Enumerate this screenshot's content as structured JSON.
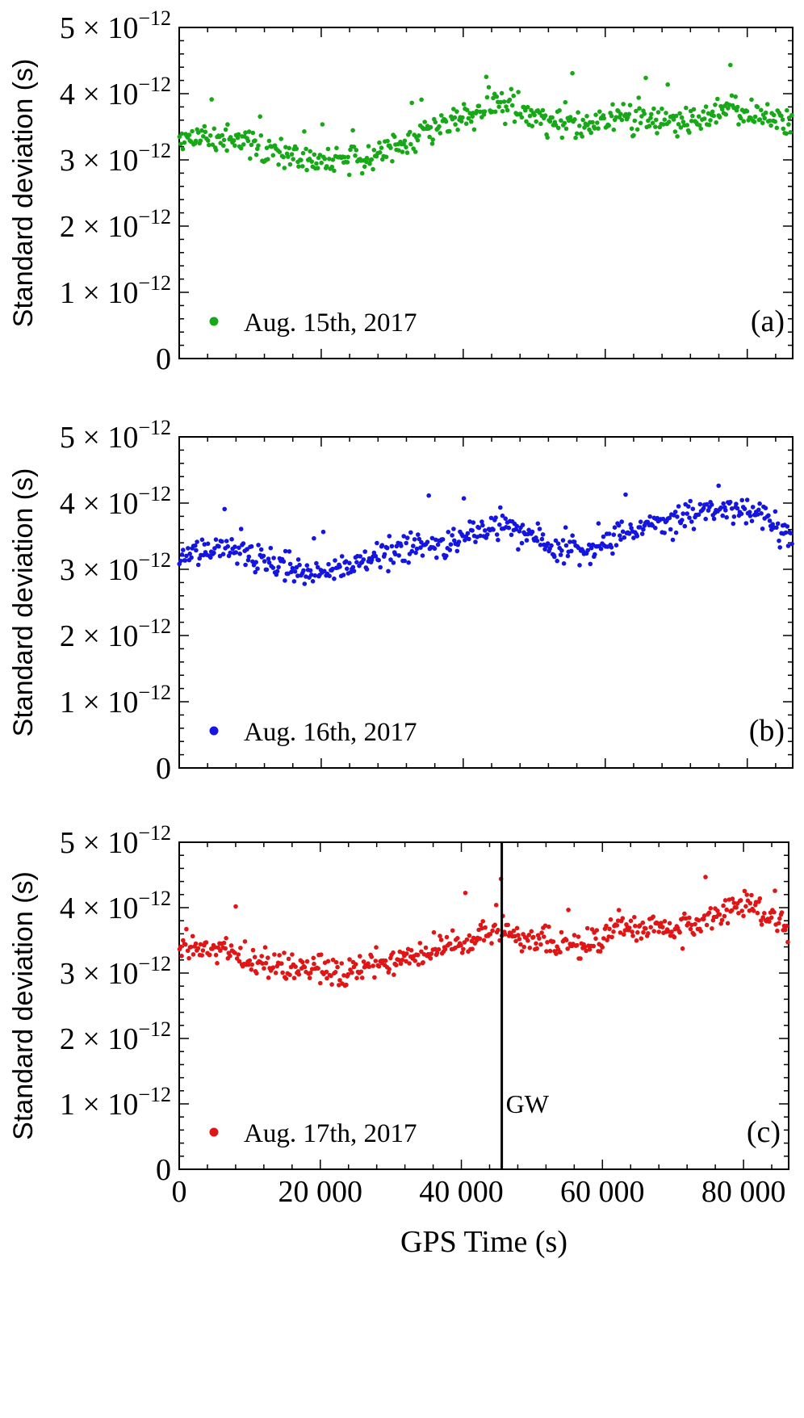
{
  "chart_data": [
    {
      "type": "scatter",
      "panel": "(a)",
      "legend": "Aug. 15th, 2017",
      "color": "#17a817",
      "ylabel": "Standard deviation (s)",
      "ylim": [
        0,
        5
      ],
      "xlim": [
        0,
        86400
      ],
      "yticks": [
        {
          "value": 0,
          "label": "0"
        },
        {
          "value": 1,
          "label": "1 × 10",
          "exp": "−12"
        },
        {
          "value": 2,
          "label": "2 × 10",
          "exp": "−12"
        },
        {
          "value": 3,
          "label": "3 × 10",
          "exp": "−12"
        },
        {
          "value": 4,
          "label": "4 × 10",
          "exp": "−12"
        },
        {
          "value": 5,
          "label": "5 × 10",
          "exp": "−12"
        }
      ],
      "trend": [
        [
          0,
          3.3
        ],
        [
          8000,
          3.35
        ],
        [
          14000,
          3.15
        ],
        [
          20000,
          3.0
        ],
        [
          25000,
          3.0
        ],
        [
          30000,
          3.15
        ],
        [
          35000,
          3.45
        ],
        [
          40000,
          3.65
        ],
        [
          45000,
          3.85
        ],
        [
          50000,
          3.65
        ],
        [
          56000,
          3.5
        ],
        [
          62000,
          3.65
        ],
        [
          70000,
          3.55
        ],
        [
          78000,
          3.75
        ],
        [
          86400,
          3.55
        ]
      ],
      "spread": 0.18,
      "n_points": 520,
      "seed": 11
    },
    {
      "type": "scatter",
      "panel": "(b)",
      "legend": "Aug. 16th, 2017",
      "color": "#1515e0",
      "ylabel": "Standard deviation (s)",
      "ylim": [
        0,
        5
      ],
      "xlim": [
        0,
        86400
      ],
      "yticks": [
        {
          "value": 0,
          "label": "0"
        },
        {
          "value": 1,
          "label": "1 × 10",
          "exp": "−12"
        },
        {
          "value": 2,
          "label": "2 × 10",
          "exp": "−12"
        },
        {
          "value": 3,
          "label": "3 × 10",
          "exp": "−12"
        },
        {
          "value": 4,
          "label": "4 × 10",
          "exp": "−12"
        },
        {
          "value": 5,
          "label": "5 × 10",
          "exp": "−12"
        }
      ],
      "trend": [
        [
          0,
          3.25
        ],
        [
          8000,
          3.3
        ],
        [
          14000,
          3.05
        ],
        [
          20000,
          2.95
        ],
        [
          25000,
          3.05
        ],
        [
          30000,
          3.3
        ],
        [
          36000,
          3.35
        ],
        [
          42000,
          3.55
        ],
        [
          46000,
          3.7
        ],
        [
          52000,
          3.35
        ],
        [
          58000,
          3.3
        ],
        [
          64000,
          3.6
        ],
        [
          70000,
          3.75
        ],
        [
          76000,
          3.9
        ],
        [
          80000,
          3.9
        ],
        [
          86400,
          3.5
        ]
      ],
      "spread": 0.18,
      "n_points": 520,
      "seed": 29
    },
    {
      "type": "scatter",
      "panel": "(c)",
      "legend": "Aug. 17th, 2017",
      "color": "#e01515",
      "ylabel": "Standard deviation (s)",
      "xlabel": "GPS Time (s)",
      "ylim": [
        0,
        5
      ],
      "xlim": [
        0,
        86400
      ],
      "xticks": [
        {
          "value": 0,
          "label": "0"
        },
        {
          "value": 20000,
          "label": "20 000"
        },
        {
          "value": 40000,
          "label": "40 000"
        },
        {
          "value": 60000,
          "label": "60 000"
        },
        {
          "value": 80000,
          "label": "80 000"
        }
      ],
      "yticks": [
        {
          "value": 0,
          "label": "0"
        },
        {
          "value": 1,
          "label": "1 × 10",
          "exp": "−12"
        },
        {
          "value": 2,
          "label": "2 × 10",
          "exp": "−12"
        },
        {
          "value": 3,
          "label": "3 × 10",
          "exp": "−12"
        },
        {
          "value": 4,
          "label": "4 × 10",
          "exp": "−12"
        },
        {
          "value": 5,
          "label": "5 × 10",
          "exp": "−12"
        }
      ],
      "trend": [
        [
          0,
          3.45
        ],
        [
          6000,
          3.35
        ],
        [
          12000,
          3.15
        ],
        [
          18000,
          3.1
        ],
        [
          24000,
          3.0
        ],
        [
          30000,
          3.2
        ],
        [
          36000,
          3.35
        ],
        [
          42000,
          3.55
        ],
        [
          46000,
          3.6
        ],
        [
          52000,
          3.45
        ],
        [
          58000,
          3.4
        ],
        [
          62000,
          3.75
        ],
        [
          70000,
          3.65
        ],
        [
          76000,
          3.8
        ],
        [
          80000,
          4.05
        ],
        [
          86400,
          3.7
        ]
      ],
      "spread": 0.18,
      "n_points": 520,
      "seed": 47,
      "marker_line": {
        "x": 45730,
        "label": "GW"
      }
    }
  ]
}
